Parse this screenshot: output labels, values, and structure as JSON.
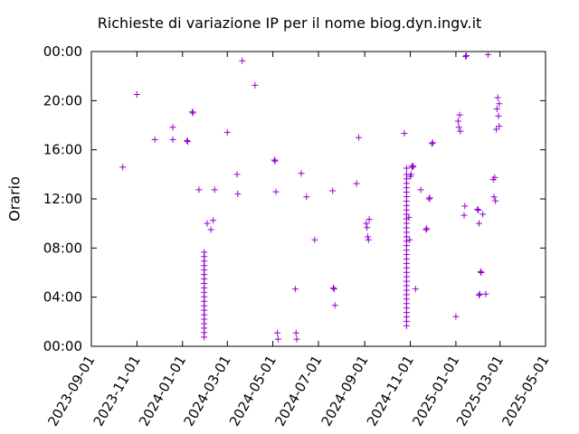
{
  "chart_data": {
    "type": "scatter",
    "title": "Richieste di variazione IP per il nome biog.dyn.ingv.it",
    "xlabel": "",
    "ylabel": "Orario",
    "marker": "+",
    "color": "#9400d3",
    "grid": false,
    "xlim": [
      "2023-09-01",
      "2025-05-01"
    ],
    "ylim": [
      "00:00",
      "24:00"
    ],
    "x_ticks": [
      "2023-09-01",
      "2023-11-01",
      "2024-01-01",
      "2024-03-01",
      "2024-05-01",
      "2024-07-01",
      "2024-09-01",
      "2024-11-01",
      "2025-01-01",
      "2025-03-01",
      "2025-05-01"
    ],
    "y_ticks": [
      "00:00",
      "04:00",
      "08:00",
      "12:00",
      "16:00",
      "20:00",
      "00:00"
    ],
    "points": [
      [
        "2023-10-13",
        "14:35"
      ],
      [
        "2023-11-01",
        "20:30"
      ],
      [
        "2023-11-25",
        "16:50"
      ],
      [
        "2023-12-19",
        "16:50"
      ],
      [
        "2023-12-19",
        "17:50"
      ],
      [
        "2024-01-07",
        "16:45"
      ],
      [
        "2024-01-08",
        "16:40"
      ],
      [
        "2024-01-14",
        "19:05"
      ],
      [
        "2024-01-15",
        "19:00"
      ],
      [
        "2024-01-23",
        "12:45"
      ],
      [
        "2024-02-03",
        "10:00"
      ],
      [
        "2024-02-08",
        "09:30"
      ],
      [
        "2024-02-11",
        "10:15"
      ],
      [
        "2024-02-13",
        "12:45"
      ],
      [
        "2024-03-01",
        "17:25"
      ],
      [
        "2024-03-14",
        "14:00"
      ],
      [
        "2024-03-15",
        "12:25"
      ],
      [
        "2024-03-21",
        "23:15"
      ],
      [
        "2024-04-07",
        "21:15"
      ],
      [
        "2024-05-03",
        "15:10"
      ],
      [
        "2024-05-04",
        "15:05"
      ],
      [
        "2024-05-05",
        "12:35"
      ],
      [
        "2024-05-07",
        "01:05"
      ],
      [
        "2024-05-08",
        "00:35"
      ],
      [
        "2024-05-31",
        "04:40"
      ],
      [
        "2024-06-01",
        "01:05"
      ],
      [
        "2024-06-02",
        "00:35"
      ],
      [
        "2024-06-08",
        "14:05"
      ],
      [
        "2024-06-15",
        "12:10"
      ],
      [
        "2024-06-26",
        "08:40"
      ],
      [
        "2024-07-20",
        "12:40"
      ],
      [
        "2024-07-21",
        "04:45"
      ],
      [
        "2024-07-22",
        "04:40"
      ],
      [
        "2024-07-23",
        "03:20"
      ],
      [
        "2024-08-21",
        "13:15"
      ],
      [
        "2024-08-24",
        "17:00"
      ],
      [
        "2024-09-03",
        "10:00"
      ],
      [
        "2024-09-04",
        "09:40"
      ],
      [
        "2024-09-05",
        "08:55"
      ],
      [
        "2024-09-06",
        "08:40"
      ],
      [
        "2024-09-07",
        "10:20"
      ],
      [
        "2024-10-24",
        "17:20"
      ],
      [
        "2024-10-27",
        "14:30"
      ],
      [
        "2024-10-30",
        "10:30"
      ],
      [
        "2024-10-31",
        "08:40"
      ],
      [
        "2024-11-01",
        "13:50"
      ],
      [
        "2024-11-02",
        "14:00"
      ],
      [
        "2024-11-03",
        "14:40"
      ],
      [
        "2024-11-04",
        "14:35"
      ],
      [
        "2024-11-05",
        "14:40"
      ],
      [
        "2024-11-08",
        "04:40"
      ],
      [
        "2024-11-15",
        "12:45"
      ],
      [
        "2024-11-22",
        "09:30"
      ],
      [
        "2024-11-23",
        "09:35"
      ],
      [
        "2024-11-26",
        "12:00"
      ],
      [
        "2024-11-27",
        "12:05"
      ],
      [
        "2024-11-30",
        "16:30"
      ],
      [
        "2024-12-01",
        "16:35"
      ],
      [
        "2025-01-01",
        "02:25"
      ],
      [
        "2025-01-04",
        "18:20"
      ],
      [
        "2025-01-05",
        "17:50"
      ],
      [
        "2025-01-06",
        "18:50"
      ],
      [
        "2025-01-07",
        "17:30"
      ],
      [
        "2025-01-12",
        "10:40"
      ],
      [
        "2025-01-13",
        "11:25"
      ],
      [
        "2025-01-14",
        "23:35"
      ],
      [
        "2025-01-15",
        "23:40"
      ],
      [
        "2025-01-30",
        "11:10"
      ],
      [
        "2025-01-31",
        "11:05"
      ],
      [
        "2025-02-01",
        "10:00"
      ],
      [
        "2025-02-01",
        "04:10"
      ],
      [
        "2025-02-02",
        "04:15"
      ],
      [
        "2025-02-03",
        "06:05"
      ],
      [
        "2025-02-04",
        "06:00"
      ],
      [
        "2025-02-06",
        "10:45"
      ],
      [
        "2025-02-10",
        "04:15"
      ],
      [
        "2025-02-13",
        "23:45"
      ],
      [
        "2025-02-20",
        "13:35"
      ],
      [
        "2025-02-21",
        "12:10"
      ],
      [
        "2025-02-22",
        "13:45"
      ],
      [
        "2025-02-23",
        "11:50"
      ],
      [
        "2025-02-24",
        "17:40"
      ],
      [
        "2025-02-25",
        "19:20"
      ],
      [
        "2025-02-26",
        "20:15"
      ],
      [
        "2025-02-27",
        "18:45"
      ],
      [
        "2025-02-28",
        "19:45"
      ],
      [
        "2025-02-28",
        "17:55"
      ]
    ],
    "vertical_runs": [
      {
        "x": "2024-01-30",
        "from": "00:45",
        "to": "07:40"
      },
      {
        "x": "2024-10-27",
        "from": "01:40",
        "to": "14:00"
      }
    ]
  }
}
